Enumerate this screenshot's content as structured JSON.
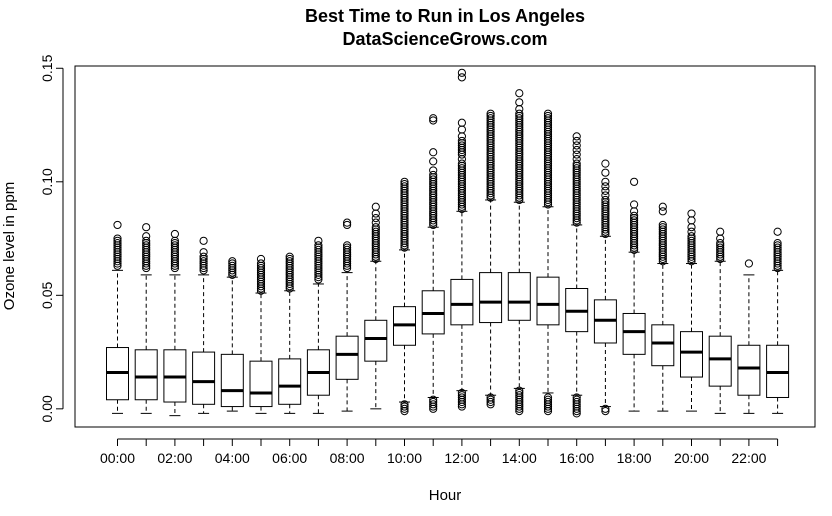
{
  "chart_data": {
    "type": "boxplot",
    "title": "Best Time to Run in Los Angeles",
    "subtitle": "DataScienceGrows.com",
    "xlabel": "Hour",
    "ylabel": "Ozone level in ppm",
    "ylim": [
      -0.008,
      0.151
    ],
    "yticks": [
      0.0,
      0.05,
      0.1,
      0.15
    ],
    "ytick_labels": [
      "0.00",
      "0.05",
      "0.10",
      "0.15"
    ],
    "grid": false,
    "legend": "none",
    "categories": [
      "00:00",
      "01:00",
      "02:00",
      "03:00",
      "04:00",
      "05:00",
      "06:00",
      "07:00",
      "08:00",
      "09:00",
      "10:00",
      "11:00",
      "12:00",
      "13:00",
      "14:00",
      "15:00",
      "16:00",
      "17:00",
      "18:00",
      "19:00",
      "20:00",
      "21:00",
      "22:00",
      "23:00"
    ],
    "xtick_labels_shown": [
      "00:00",
      "02:00",
      "04:00",
      "06:00",
      "08:00",
      "10:00",
      "12:00",
      "14:00",
      "16:00",
      "18:00",
      "20:00",
      "22:00"
    ],
    "boxes": [
      {
        "q1": 0.004,
        "median": 0.016,
        "q3": 0.027,
        "whisker_low": -0.002,
        "whisker_high": 0.061,
        "outliers_high": [
          0.063,
          0.064,
          0.065,
          0.066,
          0.067,
          0.068,
          0.069,
          0.07,
          0.071,
          0.072,
          0.073,
          0.074,
          0.075,
          0.081
        ],
        "outliers_low": []
      },
      {
        "q1": 0.004,
        "median": 0.014,
        "q3": 0.026,
        "whisker_low": -0.002,
        "whisker_high": 0.059,
        "outliers_high": [
          0.062,
          0.063,
          0.064,
          0.065,
          0.066,
          0.067,
          0.068,
          0.069,
          0.07,
          0.071,
          0.072,
          0.073,
          0.074,
          0.076,
          0.08
        ],
        "outliers_low": []
      },
      {
        "q1": 0.003,
        "median": 0.014,
        "q3": 0.026,
        "whisker_low": -0.003,
        "whisker_high": 0.059,
        "outliers_high": [
          0.062,
          0.063,
          0.064,
          0.065,
          0.066,
          0.067,
          0.068,
          0.069,
          0.07,
          0.071,
          0.072,
          0.073,
          0.074,
          0.077
        ],
        "outliers_low": []
      },
      {
        "q1": 0.002,
        "median": 0.012,
        "q3": 0.025,
        "whisker_low": -0.002,
        "whisker_high": 0.059,
        "outliers_high": [
          0.061,
          0.062,
          0.063,
          0.064,
          0.065,
          0.066,
          0.067,
          0.069,
          0.074
        ],
        "outliers_low": []
      },
      {
        "q1": 0.001,
        "median": 0.008,
        "q3": 0.024,
        "whisker_low": -0.001,
        "whisker_high": 0.058,
        "outliers_high": [
          0.059,
          0.06,
          0.061,
          0.062,
          0.063,
          0.064,
          0.065
        ],
        "outliers_low": []
      },
      {
        "q1": 0.001,
        "median": 0.007,
        "q3": 0.021,
        "whisker_low": -0.002,
        "whisker_high": 0.051,
        "outliers_high": [
          0.052,
          0.053,
          0.054,
          0.055,
          0.056,
          0.057,
          0.058,
          0.059,
          0.06,
          0.061,
          0.062,
          0.063,
          0.064,
          0.066
        ],
        "outliers_low": []
      },
      {
        "q1": 0.002,
        "median": 0.01,
        "q3": 0.022,
        "whisker_low": -0.002,
        "whisker_high": 0.052,
        "outliers_high": [
          0.053,
          0.054,
          0.055,
          0.056,
          0.057,
          0.058,
          0.059,
          0.06,
          0.061,
          0.062,
          0.063,
          0.064,
          0.065,
          0.066,
          0.067
        ],
        "outliers_low": []
      },
      {
        "q1": 0.006,
        "median": 0.016,
        "q3": 0.026,
        "whisker_low": -0.002,
        "whisker_high": 0.055,
        "outliers_high": [
          0.057,
          0.058,
          0.059,
          0.06,
          0.061,
          0.062,
          0.063,
          0.064,
          0.065,
          0.066,
          0.067,
          0.068,
          0.069,
          0.07,
          0.071,
          0.072,
          0.074
        ],
        "outliers_low": []
      },
      {
        "q1": 0.013,
        "median": 0.024,
        "q3": 0.032,
        "whisker_low": -0.001,
        "whisker_high": 0.06,
        "outliers_high": [
          0.062,
          0.063,
          0.064,
          0.065,
          0.066,
          0.067,
          0.068,
          0.069,
          0.07,
          0.071,
          0.072,
          0.081,
          0.082
        ],
        "outliers_low": []
      },
      {
        "q1": 0.021,
        "median": 0.031,
        "q3": 0.039,
        "whisker_low": 0.0,
        "whisker_high": 0.065,
        "outliers_high": [
          0.066,
          0.067,
          0.068,
          0.069,
          0.07,
          0.071,
          0.072,
          0.073,
          0.074,
          0.075,
          0.076,
          0.077,
          0.078,
          0.079,
          0.08,
          0.082,
          0.084,
          0.086,
          0.089
        ],
        "outliers_low": []
      },
      {
        "q1": 0.028,
        "median": 0.037,
        "q3": 0.045,
        "whisker_low": 0.003,
        "whisker_high": 0.07,
        "outliers_high": [
          0.071,
          0.072,
          0.073,
          0.074,
          0.075,
          0.076,
          0.077,
          0.078,
          0.079,
          0.08,
          0.081,
          0.082,
          0.083,
          0.084,
          0.085,
          0.086,
          0.087,
          0.088,
          0.089,
          0.09,
          0.091,
          0.092,
          0.093,
          0.094,
          0.095,
          0.096,
          0.097,
          0.098,
          0.099,
          0.1
        ],
        "outliers_low": [
          0.002,
          0.001,
          0.0,
          -0.001
        ]
      },
      {
        "q1": 0.033,
        "median": 0.042,
        "q3": 0.052,
        "whisker_low": 0.005,
        "whisker_high": 0.08,
        "outliers_high": [
          0.081,
          0.082,
          0.083,
          0.084,
          0.085,
          0.086,
          0.087,
          0.088,
          0.089,
          0.09,
          0.091,
          0.092,
          0.093,
          0.094,
          0.095,
          0.096,
          0.097,
          0.098,
          0.099,
          0.1,
          0.101,
          0.102,
          0.103,
          0.105,
          0.109,
          0.113,
          0.127,
          0.128
        ],
        "outliers_low": [
          0.004,
          0.003,
          0.002,
          0.001,
          0.0
        ]
      },
      {
        "q1": 0.037,
        "median": 0.046,
        "q3": 0.057,
        "whisker_low": 0.008,
        "whisker_high": 0.087,
        "outliers_high": [
          0.088,
          0.089,
          0.09,
          0.091,
          0.092,
          0.093,
          0.094,
          0.095,
          0.096,
          0.097,
          0.098,
          0.099,
          0.1,
          0.101,
          0.102,
          0.103,
          0.104,
          0.105,
          0.106,
          0.107,
          0.108,
          0.11,
          0.112,
          0.113,
          0.114,
          0.115,
          0.116,
          0.117,
          0.118,
          0.12,
          0.123,
          0.126,
          0.146,
          0.148
        ],
        "outliers_low": [
          0.007,
          0.006,
          0.005,
          0.004,
          0.003,
          0.002,
          0.001
        ]
      },
      {
        "q1": 0.038,
        "median": 0.047,
        "q3": 0.06,
        "whisker_low": 0.006,
        "whisker_high": 0.092,
        "outliers_high": [
          0.093,
          0.094,
          0.095,
          0.096,
          0.097,
          0.098,
          0.099,
          0.1,
          0.101,
          0.102,
          0.103,
          0.104,
          0.105,
          0.106,
          0.107,
          0.108,
          0.109,
          0.11,
          0.111,
          0.112,
          0.113,
          0.114,
          0.115,
          0.116,
          0.117,
          0.118,
          0.119,
          0.12,
          0.121,
          0.122,
          0.123,
          0.124,
          0.125,
          0.126,
          0.127,
          0.128,
          0.129,
          0.13
        ],
        "outliers_low": [
          0.005,
          0.004,
          0.003,
          0.002
        ]
      },
      {
        "q1": 0.039,
        "median": 0.047,
        "q3": 0.06,
        "whisker_low": 0.009,
        "whisker_high": 0.091,
        "outliers_high": [
          0.092,
          0.093,
          0.094,
          0.095,
          0.096,
          0.097,
          0.098,
          0.099,
          0.1,
          0.101,
          0.102,
          0.103,
          0.104,
          0.105,
          0.106,
          0.107,
          0.108,
          0.109,
          0.11,
          0.111,
          0.112,
          0.113,
          0.114,
          0.115,
          0.116,
          0.117,
          0.118,
          0.119,
          0.12,
          0.121,
          0.122,
          0.123,
          0.124,
          0.125,
          0.126,
          0.127,
          0.128,
          0.129,
          0.13,
          0.132,
          0.135,
          0.139
        ],
        "outliers_low": [
          0.008,
          0.007,
          0.006,
          0.005,
          0.004,
          0.003,
          0.002,
          0.001,
          0.0,
          -0.001
        ]
      },
      {
        "q1": 0.037,
        "median": 0.046,
        "q3": 0.058,
        "whisker_low": 0.007,
        "whisker_high": 0.089,
        "outliers_high": [
          0.09,
          0.091,
          0.092,
          0.093,
          0.094,
          0.095,
          0.096,
          0.097,
          0.098,
          0.099,
          0.1,
          0.101,
          0.102,
          0.103,
          0.104,
          0.105,
          0.106,
          0.107,
          0.108,
          0.109,
          0.11,
          0.111,
          0.112,
          0.113,
          0.114,
          0.115,
          0.116,
          0.117,
          0.118,
          0.119,
          0.12,
          0.121,
          0.122,
          0.123,
          0.124,
          0.125,
          0.126,
          0.127,
          0.128,
          0.129,
          0.13
        ],
        "outliers_low": [
          0.005,
          0.004,
          0.003,
          0.002,
          0.001,
          0.0,
          -0.001
        ]
      },
      {
        "q1": 0.034,
        "median": 0.043,
        "q3": 0.053,
        "whisker_low": 0.006,
        "whisker_high": 0.081,
        "outliers_high": [
          0.082,
          0.083,
          0.084,
          0.085,
          0.086,
          0.087,
          0.088,
          0.089,
          0.09,
          0.091,
          0.092,
          0.093,
          0.094,
          0.095,
          0.096,
          0.097,
          0.098,
          0.099,
          0.1,
          0.101,
          0.102,
          0.103,
          0.104,
          0.105,
          0.106,
          0.107,
          0.108,
          0.11,
          0.112,
          0.114,
          0.116,
          0.118,
          0.12
        ],
        "outliers_low": [
          0.005,
          0.004,
          0.003,
          0.002,
          0.001,
          0.0,
          -0.001,
          -0.002
        ]
      },
      {
        "q1": 0.029,
        "median": 0.039,
        "q3": 0.048,
        "whisker_low": 0.001,
        "whisker_high": 0.076,
        "outliers_high": [
          0.077,
          0.078,
          0.079,
          0.08,
          0.081,
          0.082,
          0.083,
          0.084,
          0.085,
          0.086,
          0.087,
          0.088,
          0.089,
          0.09,
          0.091,
          0.092,
          0.094,
          0.096,
          0.098,
          0.1,
          0.104,
          0.108
        ],
        "outliers_low": [
          0.0,
          -0.001
        ]
      },
      {
        "q1": 0.024,
        "median": 0.034,
        "q3": 0.042,
        "whisker_low": -0.001,
        "whisker_high": 0.069,
        "outliers_high": [
          0.07,
          0.071,
          0.072,
          0.073,
          0.074,
          0.075,
          0.076,
          0.077,
          0.078,
          0.079,
          0.08,
          0.081,
          0.082,
          0.083,
          0.084,
          0.085,
          0.087,
          0.09,
          0.1
        ],
        "outliers_low": []
      },
      {
        "q1": 0.019,
        "median": 0.029,
        "q3": 0.037,
        "whisker_low": -0.001,
        "whisker_high": 0.064,
        "outliers_high": [
          0.065,
          0.066,
          0.067,
          0.068,
          0.069,
          0.07,
          0.071,
          0.072,
          0.073,
          0.074,
          0.075,
          0.076,
          0.077,
          0.078,
          0.079,
          0.08,
          0.081,
          0.087,
          0.089
        ],
        "outliers_low": []
      },
      {
        "q1": 0.014,
        "median": 0.025,
        "q3": 0.034,
        "whisker_low": -0.001,
        "whisker_high": 0.064,
        "outliers_high": [
          0.065,
          0.066,
          0.067,
          0.068,
          0.069,
          0.07,
          0.071,
          0.072,
          0.073,
          0.074,
          0.075,
          0.076,
          0.078,
          0.08,
          0.083,
          0.086
        ],
        "outliers_low": []
      },
      {
        "q1": 0.01,
        "median": 0.022,
        "q3": 0.032,
        "whisker_low": -0.002,
        "whisker_high": 0.065,
        "outliers_high": [
          0.066,
          0.067,
          0.068,
          0.069,
          0.07,
          0.071,
          0.072,
          0.073,
          0.075,
          0.078
        ],
        "outliers_low": []
      },
      {
        "q1": 0.006,
        "median": 0.018,
        "q3": 0.028,
        "whisker_low": -0.002,
        "whisker_high": 0.059,
        "outliers_high": [
          0.064
        ],
        "outliers_low": []
      },
      {
        "q1": 0.005,
        "median": 0.016,
        "q3": 0.028,
        "whisker_low": -0.002,
        "whisker_high": 0.061,
        "outliers_high": [
          0.062,
          0.063,
          0.064,
          0.065,
          0.066,
          0.067,
          0.068,
          0.069,
          0.07,
          0.071,
          0.072,
          0.073,
          0.078
        ],
        "outliers_low": []
      }
    ]
  }
}
